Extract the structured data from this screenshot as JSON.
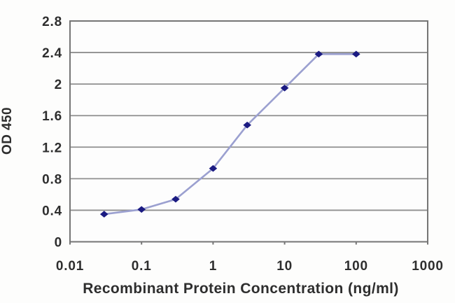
{
  "chart_data": {
    "type": "line",
    "x": [
      0.03,
      0.1,
      0.3,
      1,
      3,
      10,
      30,
      100
    ],
    "y": [
      0.35,
      0.41,
      0.54,
      0.93,
      1.48,
      1.95,
      2.38,
      2.38
    ],
    "xlabel": "Recombinant Protein Concentration (ng/ml)",
    "ylabel": "OD 450",
    "x_scale": "log",
    "xlim": [
      0.01,
      1000
    ],
    "ylim": [
      0,
      2.8
    ],
    "x_tick_values": [
      0.01,
      0.1,
      1,
      10,
      100,
      1000
    ],
    "x_tick_labels": [
      "0.01",
      "0.1",
      "1",
      "10",
      "100",
      "1000"
    ],
    "y_tick_values": [
      0,
      0.4,
      0.8,
      1.2,
      1.6,
      2,
      2.4,
      2.8
    ],
    "y_tick_labels": [
      "0",
      "0.4",
      "0.8",
      "1.2",
      "1.6",
      "2",
      "2.4",
      "2.8"
    ],
    "grid": "horizontal",
    "legend": "none",
    "marker": "diamond",
    "colors": {
      "line": "#9ba0d0",
      "marker": "#1b1b82",
      "grid": "#8f8f8f",
      "border": "#757575",
      "text": "#2e2e2e",
      "plot_background": "#fdfdfd",
      "figure_background": "#fdfdfc"
    }
  }
}
